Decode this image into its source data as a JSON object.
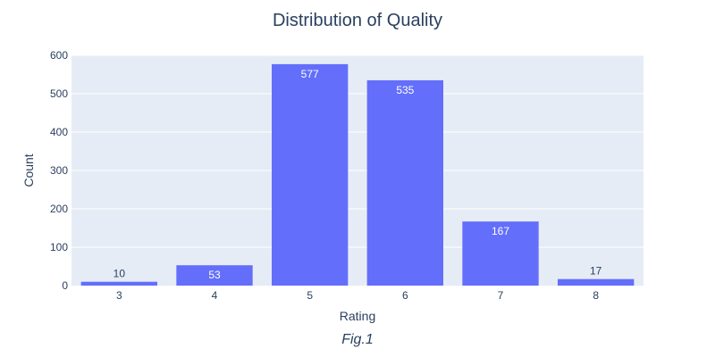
{
  "chart_data": {
    "type": "bar",
    "title": "Distribution of Quality",
    "xlabel": "Rating",
    "ylabel": "Count",
    "categories": [
      "3",
      "4",
      "5",
      "6",
      "7",
      "8"
    ],
    "values": [
      10,
      53,
      577,
      535,
      167,
      17
    ],
    "ylim": [
      0,
      600
    ],
    "yticks": [
      "0",
      "100",
      "200",
      "300",
      "400",
      "500",
      "600"
    ],
    "bar_color": "#636efa",
    "plot_bg": "#e5ecf6",
    "grid": true,
    "caption": "Fig.1"
  }
}
